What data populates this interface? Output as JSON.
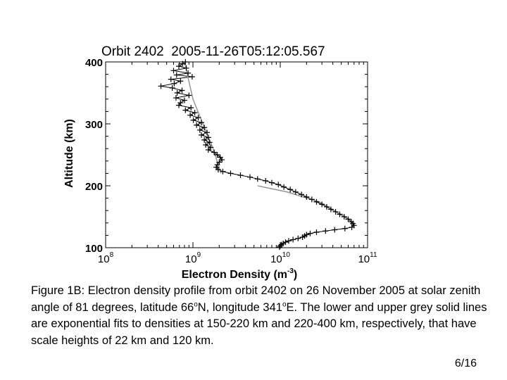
{
  "chart_data": {
    "type": "scatter",
    "title": "Orbit 2402  2005-11-26T05:12:05.567",
    "xlabel": "Electron Density (m",
    "xlabel_exp": "-3",
    "xlabel_suffix": ")",
    "ylabel": "Altitude (km)",
    "x_scale": "log",
    "xlim": [
      100000000.0,
      100000000000.0
    ],
    "ylim": [
      100,
      400
    ],
    "x_ticks": [
      {
        "value": 100000000.0,
        "base": "10",
        "exp": "8"
      },
      {
        "value": 1000000000.0,
        "base": "10",
        "exp": "9"
      },
      {
        "value": 10000000000.0,
        "base": "10",
        "exp": "10"
      },
      {
        "value": 100000000000.0,
        "base": "10",
        "exp": "11"
      }
    ],
    "y_ticks": [
      "100",
      "200",
      "300",
      "400"
    ],
    "grid": false,
    "marker": "plus",
    "series": [
      {
        "marker": "plus",
        "points": [
          [
            820000000.0,
            400
          ],
          [
            760000000.0,
            397
          ],
          [
            690000000.0,
            393
          ],
          [
            840000000.0,
            390
          ],
          [
            600000000.0,
            386
          ],
          [
            880000000.0,
            382
          ],
          [
            650000000.0,
            379
          ],
          [
            980000000.0,
            376
          ],
          [
            560000000.0,
            372
          ],
          [
            720000000.0,
            369
          ],
          [
            610000000.0,
            365
          ],
          [
            430000000.0,
            361
          ],
          [
            580000000.0,
            358
          ],
          [
            750000000.0,
            354
          ],
          [
            660000000.0,
            350
          ],
          [
            900000000.0,
            346
          ],
          [
            640000000.0,
            342
          ],
          [
            800000000.0,
            338
          ],
          [
            720000000.0,
            334
          ],
          [
            690000000.0,
            330
          ],
          [
            950000000.0,
            326
          ],
          [
            820000000.0,
            322
          ],
          [
            1050000000.0,
            318
          ],
          [
            930000000.0,
            314
          ],
          [
            1150000000.0,
            310
          ],
          [
            1010000000.0,
            306
          ],
          [
            1250000000.0,
            302
          ],
          [
            1100000000.0,
            298
          ],
          [
            1350000000.0,
            294
          ],
          [
            1200000000.0,
            290
          ],
          [
            1450000000.0,
            286
          ],
          [
            1250000000.0,
            282
          ],
          [
            1500000000.0,
            278
          ],
          [
            1350000000.0,
            274
          ],
          [
            1550000000.0,
            270
          ],
          [
            1400000000.0,
            266
          ],
          [
            1600000000.0,
            262
          ],
          [
            1500000000.0,
            258
          ],
          [
            1750000000.0,
            254
          ],
          [
            1900000000.0,
            250
          ],
          [
            2050000000.0,
            246
          ],
          [
            2150000000.0,
            242
          ],
          [
            2000000000.0,
            238
          ],
          [
            1900000000.0,
            234
          ],
          [
            1850000000.0,
            230
          ],
          [
            1950000000.0,
            226
          ],
          [
            2200000000.0,
            223
          ],
          [
            2700000000.0,
            220
          ],
          [
            3500000000.0,
            217
          ],
          [
            4500000000.0,
            214
          ],
          [
            5500000000.0,
            211
          ],
          [
            6800000000.0,
            208
          ],
          [
            8000000000.0,
            205
          ],
          [
            9500000000.0,
            202
          ],
          [
            11000000000.0,
            198
          ],
          [
            13000000000.0,
            194
          ],
          [
            15000000000.0,
            190
          ],
          [
            17500000000.0,
            186
          ],
          [
            20000000000.0,
            182
          ],
          [
            23000000000.0,
            178
          ],
          [
            26000000000.0,
            174
          ],
          [
            30000000000.0,
            170
          ],
          [
            34000000000.0,
            166
          ],
          [
            38000000000.0,
            162
          ],
          [
            43000000000.0,
            158
          ],
          [
            48000000000.0,
            154
          ],
          [
            54000000000.0,
            150
          ],
          [
            60000000000.0,
            146
          ],
          [
            65000000000.0,
            142
          ],
          [
            68000000000.0,
            139
          ],
          [
            70000000000.0,
            136
          ],
          [
            66000000000.0,
            133
          ],
          [
            55000000000.0,
            131
          ],
          [
            42000000000.0,
            129
          ],
          [
            33000000000.0,
            127
          ],
          [
            26000000000.0,
            125
          ],
          [
            22000000000.0,
            123
          ],
          [
            20000000000.0,
            121
          ],
          [
            19000000000.0,
            119
          ],
          [
            18000000000.0,
            117
          ],
          [
            16000000000.0,
            115
          ],
          [
            14000000000.0,
            113
          ],
          [
            12500000000.0,
            111
          ],
          [
            11500000000.0,
            109
          ],
          [
            10800000000.0,
            107
          ],
          [
            10300000000.0,
            105
          ],
          [
            10000000000.0,
            103
          ],
          [
            9800000000.0,
            101
          ]
        ]
      }
    ],
    "fits": [
      {
        "color": "#9a9a9a",
        "points": [
          [
            5500000000.0,
            200
          ],
          [
            12000000000.0,
            190
          ],
          [
            28000000000.0,
            174
          ],
          [
            62000000000.0,
            146
          ]
        ]
      },
      {
        "color": "#9a9a9a",
        "points": [
          [
            800000000.0,
            400
          ],
          [
            1000000000.0,
            340
          ],
          [
            1300000000.0,
            300
          ],
          [
            1700000000.0,
            260
          ],
          [
            2100000000.0,
            220
          ]
        ]
      }
    ]
  },
  "caption": {
    "before_sup1": "Figure 1B: Electron density profile from orbit 2402 on 26 November 2005 at solar zenith angle of 81 degrees, latitude 66",
    "sup1": "o",
    "between": "N, longitude 341",
    "sup2": "o",
    "after_sup2": "E. The lower and upper grey solid lines are exponential fits to densities at 150-220 km and 220-400 km, respectively, that have scale heights of 22 km and 120 km."
  },
  "page_number": "6/16"
}
